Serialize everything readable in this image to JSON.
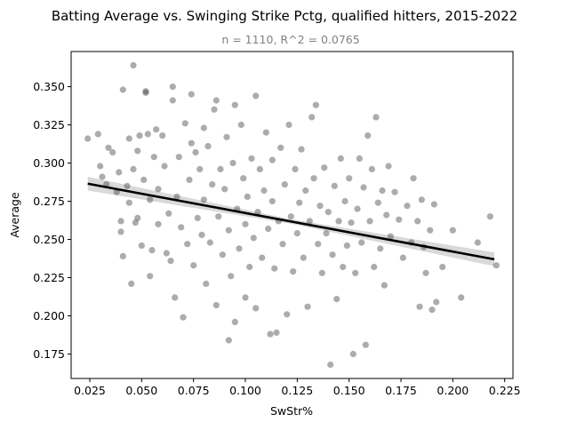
{
  "chart_data": {
    "type": "scatter",
    "title": "Batting Average vs. Swinging Strike Pctg, qualified hitters, 2015-2022",
    "subtitle": "n = 1110, R^2 = 0.0765",
    "xlabel": "SwStr%",
    "ylabel": "Average",
    "xlim": [
      0.016,
      0.229
    ],
    "ylim": [
      0.159,
      0.373
    ],
    "xticks": [
      "0.025",
      "0.050",
      "0.075",
      "0.100",
      "0.125",
      "0.150",
      "0.175",
      "0.200",
      "0.225"
    ],
    "yticks": [
      "0.175",
      "0.200",
      "0.225",
      "0.250",
      "0.275",
      "0.300",
      "0.325",
      "0.350"
    ],
    "grid": false,
    "point_color": "#3a3a3a",
    "regression": {
      "x": [
        0.024,
        0.22
      ],
      "y": [
        0.2865,
        0.237
      ],
      "ci_halfwidth": [
        0.0045,
        0.0015,
        0.0045
      ]
    },
    "series": [
      {
        "points": [
          [
            0.024,
            0.316
          ],
          [
            0.029,
            0.319
          ],
          [
            0.03,
            0.298
          ],
          [
            0.031,
            0.291
          ],
          [
            0.033,
            0.286
          ],
          [
            0.034,
            0.31
          ],
          [
            0.036,
            0.307
          ],
          [
            0.038,
            0.281
          ],
          [
            0.039,
            0.294
          ],
          [
            0.04,
            0.255
          ],
          [
            0.04,
            0.262
          ],
          [
            0.041,
            0.348
          ],
          [
            0.041,
            0.239
          ],
          [
            0.043,
            0.285
          ],
          [
            0.044,
            0.316
          ],
          [
            0.044,
            0.274
          ],
          [
            0.045,
            0.221
          ],
          [
            0.046,
            0.364
          ],
          [
            0.046,
            0.296
          ],
          [
            0.047,
            0.261
          ],
          [
            0.048,
            0.308
          ],
          [
            0.048,
            0.264
          ],
          [
            0.049,
            0.318
          ],
          [
            0.05,
            0.246
          ],
          [
            0.051,
            0.289
          ],
          [
            0.052,
            0.346
          ],
          [
            0.052,
            0.347
          ],
          [
            0.053,
            0.319
          ],
          [
            0.054,
            0.276
          ],
          [
            0.054,
            0.226
          ],
          [
            0.055,
            0.243
          ],
          [
            0.056,
            0.304
          ],
          [
            0.057,
            0.322
          ],
          [
            0.058,
            0.26
          ],
          [
            0.058,
            0.283
          ],
          [
            0.06,
            0.318
          ],
          [
            0.061,
            0.298
          ],
          [
            0.062,
            0.241
          ],
          [
            0.063,
            0.267
          ],
          [
            0.064,
            0.236
          ],
          [
            0.065,
            0.341
          ],
          [
            0.065,
            0.35
          ],
          [
            0.066,
            0.212
          ],
          [
            0.067,
            0.278
          ],
          [
            0.068,
            0.304
          ],
          [
            0.069,
            0.258
          ],
          [
            0.07,
            0.199
          ],
          [
            0.071,
            0.326
          ],
          [
            0.072,
            0.247
          ],
          [
            0.073,
            0.289
          ],
          [
            0.074,
            0.345
          ],
          [
            0.074,
            0.313
          ],
          [
            0.075,
            0.233
          ],
          [
            0.076,
            0.307
          ],
          [
            0.077,
            0.264
          ],
          [
            0.078,
            0.296
          ],
          [
            0.079,
            0.253
          ],
          [
            0.08,
            0.276
          ],
          [
            0.08,
            0.323
          ],
          [
            0.081,
            0.221
          ],
          [
            0.082,
            0.311
          ],
          [
            0.083,
            0.248
          ],
          [
            0.084,
            0.286
          ],
          [
            0.085,
            0.335
          ],
          [
            0.086,
            0.341
          ],
          [
            0.086,
            0.207
          ],
          [
            0.087,
            0.265
          ],
          [
            0.088,
            0.296
          ],
          [
            0.089,
            0.24
          ],
          [
            0.09,
            0.283
          ],
          [
            0.091,
            0.317
          ],
          [
            0.092,
            0.184
          ],
          [
            0.092,
            0.256
          ],
          [
            0.093,
            0.226
          ],
          [
            0.094,
            0.3
          ],
          [
            0.095,
            0.196
          ],
          [
            0.095,
            0.338
          ],
          [
            0.096,
            0.27
          ],
          [
            0.097,
            0.244
          ],
          [
            0.098,
            0.325
          ],
          [
            0.099,
            0.29
          ],
          [
            0.1,
            0.212
          ],
          [
            0.1,
            0.26
          ],
          [
            0.101,
            0.278
          ],
          [
            0.102,
            0.232
          ],
          [
            0.103,
            0.303
          ],
          [
            0.104,
            0.251
          ],
          [
            0.105,
            0.344
          ],
          [
            0.105,
            0.205
          ],
          [
            0.106,
            0.268
          ],
          [
            0.107,
            0.296
          ],
          [
            0.108,
            0.238
          ],
          [
            0.109,
            0.282
          ],
          [
            0.11,
            0.32
          ],
          [
            0.111,
            0.257
          ],
          [
            0.112,
            0.188
          ],
          [
            0.113,
            0.275
          ],
          [
            0.113,
            0.302
          ],
          [
            0.114,
            0.231
          ],
          [
            0.115,
            0.189
          ],
          [
            0.116,
            0.262
          ],
          [
            0.117,
            0.31
          ],
          [
            0.118,
            0.247
          ],
          [
            0.119,
            0.286
          ],
          [
            0.12,
            0.201
          ],
          [
            0.121,
            0.325
          ],
          [
            0.122,
            0.265
          ],
          [
            0.123,
            0.229
          ],
          [
            0.124,
            0.296
          ],
          [
            0.125,
            0.254
          ],
          [
            0.126,
            0.274
          ],
          [
            0.127,
            0.309
          ],
          [
            0.128,
            0.238
          ],
          [
            0.129,
            0.282
          ],
          [
            0.13,
            0.206
          ],
          [
            0.131,
            0.262
          ],
          [
            0.132,
            0.33
          ],
          [
            0.133,
            0.29
          ],
          [
            0.134,
            0.338
          ],
          [
            0.135,
            0.247
          ],
          [
            0.136,
            0.272
          ],
          [
            0.137,
            0.228
          ],
          [
            0.138,
            0.297
          ],
          [
            0.139,
            0.254
          ],
          [
            0.14,
            0.268
          ],
          [
            0.141,
            0.168
          ],
          [
            0.142,
            0.24
          ],
          [
            0.143,
            0.285
          ],
          [
            0.144,
            0.211
          ],
          [
            0.145,
            0.262
          ],
          [
            0.146,
            0.303
          ],
          [
            0.147,
            0.232
          ],
          [
            0.148,
            0.275
          ],
          [
            0.149,
            0.246
          ],
          [
            0.15,
            0.29
          ],
          [
            0.151,
            0.261
          ],
          [
            0.152,
            0.175
          ],
          [
            0.153,
            0.228
          ],
          [
            0.154,
            0.27
          ],
          [
            0.155,
            0.303
          ],
          [
            0.156,
            0.248
          ],
          [
            0.157,
            0.284
          ],
          [
            0.158,
            0.181
          ],
          [
            0.159,
            0.318
          ],
          [
            0.16,
            0.262
          ],
          [
            0.161,
            0.296
          ],
          [
            0.162,
            0.232
          ],
          [
            0.163,
            0.33
          ],
          [
            0.164,
            0.274
          ],
          [
            0.165,
            0.244
          ],
          [
            0.166,
            0.282
          ],
          [
            0.167,
            0.22
          ],
          [
            0.168,
            0.266
          ],
          [
            0.169,
            0.298
          ],
          [
            0.17,
            0.252
          ],
          [
            0.172,
            0.281
          ],
          [
            0.174,
            0.263
          ],
          [
            0.176,
            0.238
          ],
          [
            0.178,
            0.272
          ],
          [
            0.18,
            0.248
          ],
          [
            0.181,
            0.29
          ],
          [
            0.183,
            0.262
          ],
          [
            0.184,
            0.206
          ],
          [
            0.185,
            0.276
          ],
          [
            0.186,
            0.245
          ],
          [
            0.187,
            0.228
          ],
          [
            0.189,
            0.256
          ],
          [
            0.19,
            0.204
          ],
          [
            0.191,
            0.273
          ],
          [
            0.192,
            0.209
          ],
          [
            0.195,
            0.232
          ],
          [
            0.2,
            0.256
          ],
          [
            0.204,
            0.212
          ],
          [
            0.212,
            0.248
          ],
          [
            0.218,
            0.265
          ],
          [
            0.221,
            0.233
          ]
        ]
      }
    ]
  }
}
